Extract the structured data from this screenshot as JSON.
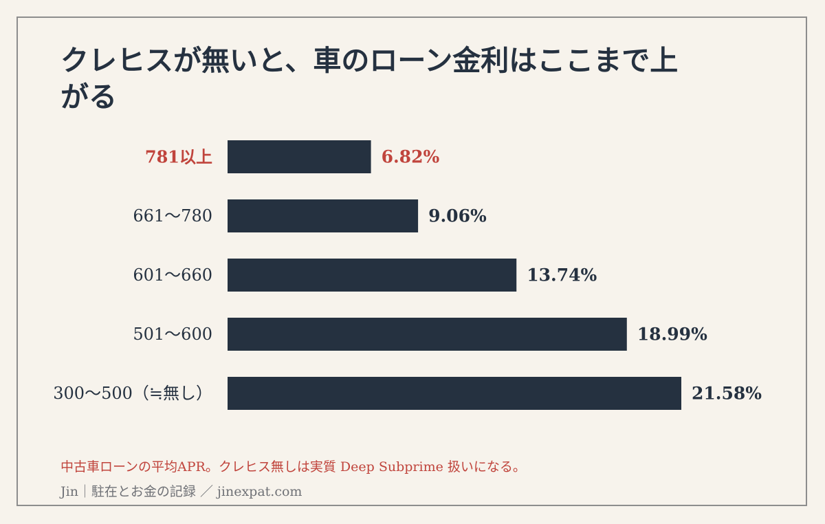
{
  "title": "クレヒスが無いと、車のローン金利はここまで上がる",
  "note": "中古車ローンの平均APR。クレヒス無しは実質 Deep Subprime 扱いになる。",
  "credit": "Jin｜駐在とお金の記録 ／ jinexpat.com",
  "colors": {
    "background": "#f7f3ec",
    "bar": "#253140",
    "highlight": "#c0443c",
    "text": "#253140",
    "muted": "#6f7176",
    "frame": "#8d8d8d"
  },
  "chart_data": {
    "type": "bar",
    "orientation": "horizontal",
    "categories": [
      "781以上",
      "661〜780",
      "601〜660",
      "501〜600",
      "300〜500（≒無し）"
    ],
    "values": [
      6.82,
      9.06,
      13.74,
      18.99,
      21.58
    ],
    "value_labels": [
      "6.82%",
      "9.06%",
      "13.74%",
      "18.99%",
      "21.58%"
    ],
    "highlight_index": 0,
    "xlim": [
      0,
      21.58
    ],
    "grid": false,
    "legend": "none"
  }
}
